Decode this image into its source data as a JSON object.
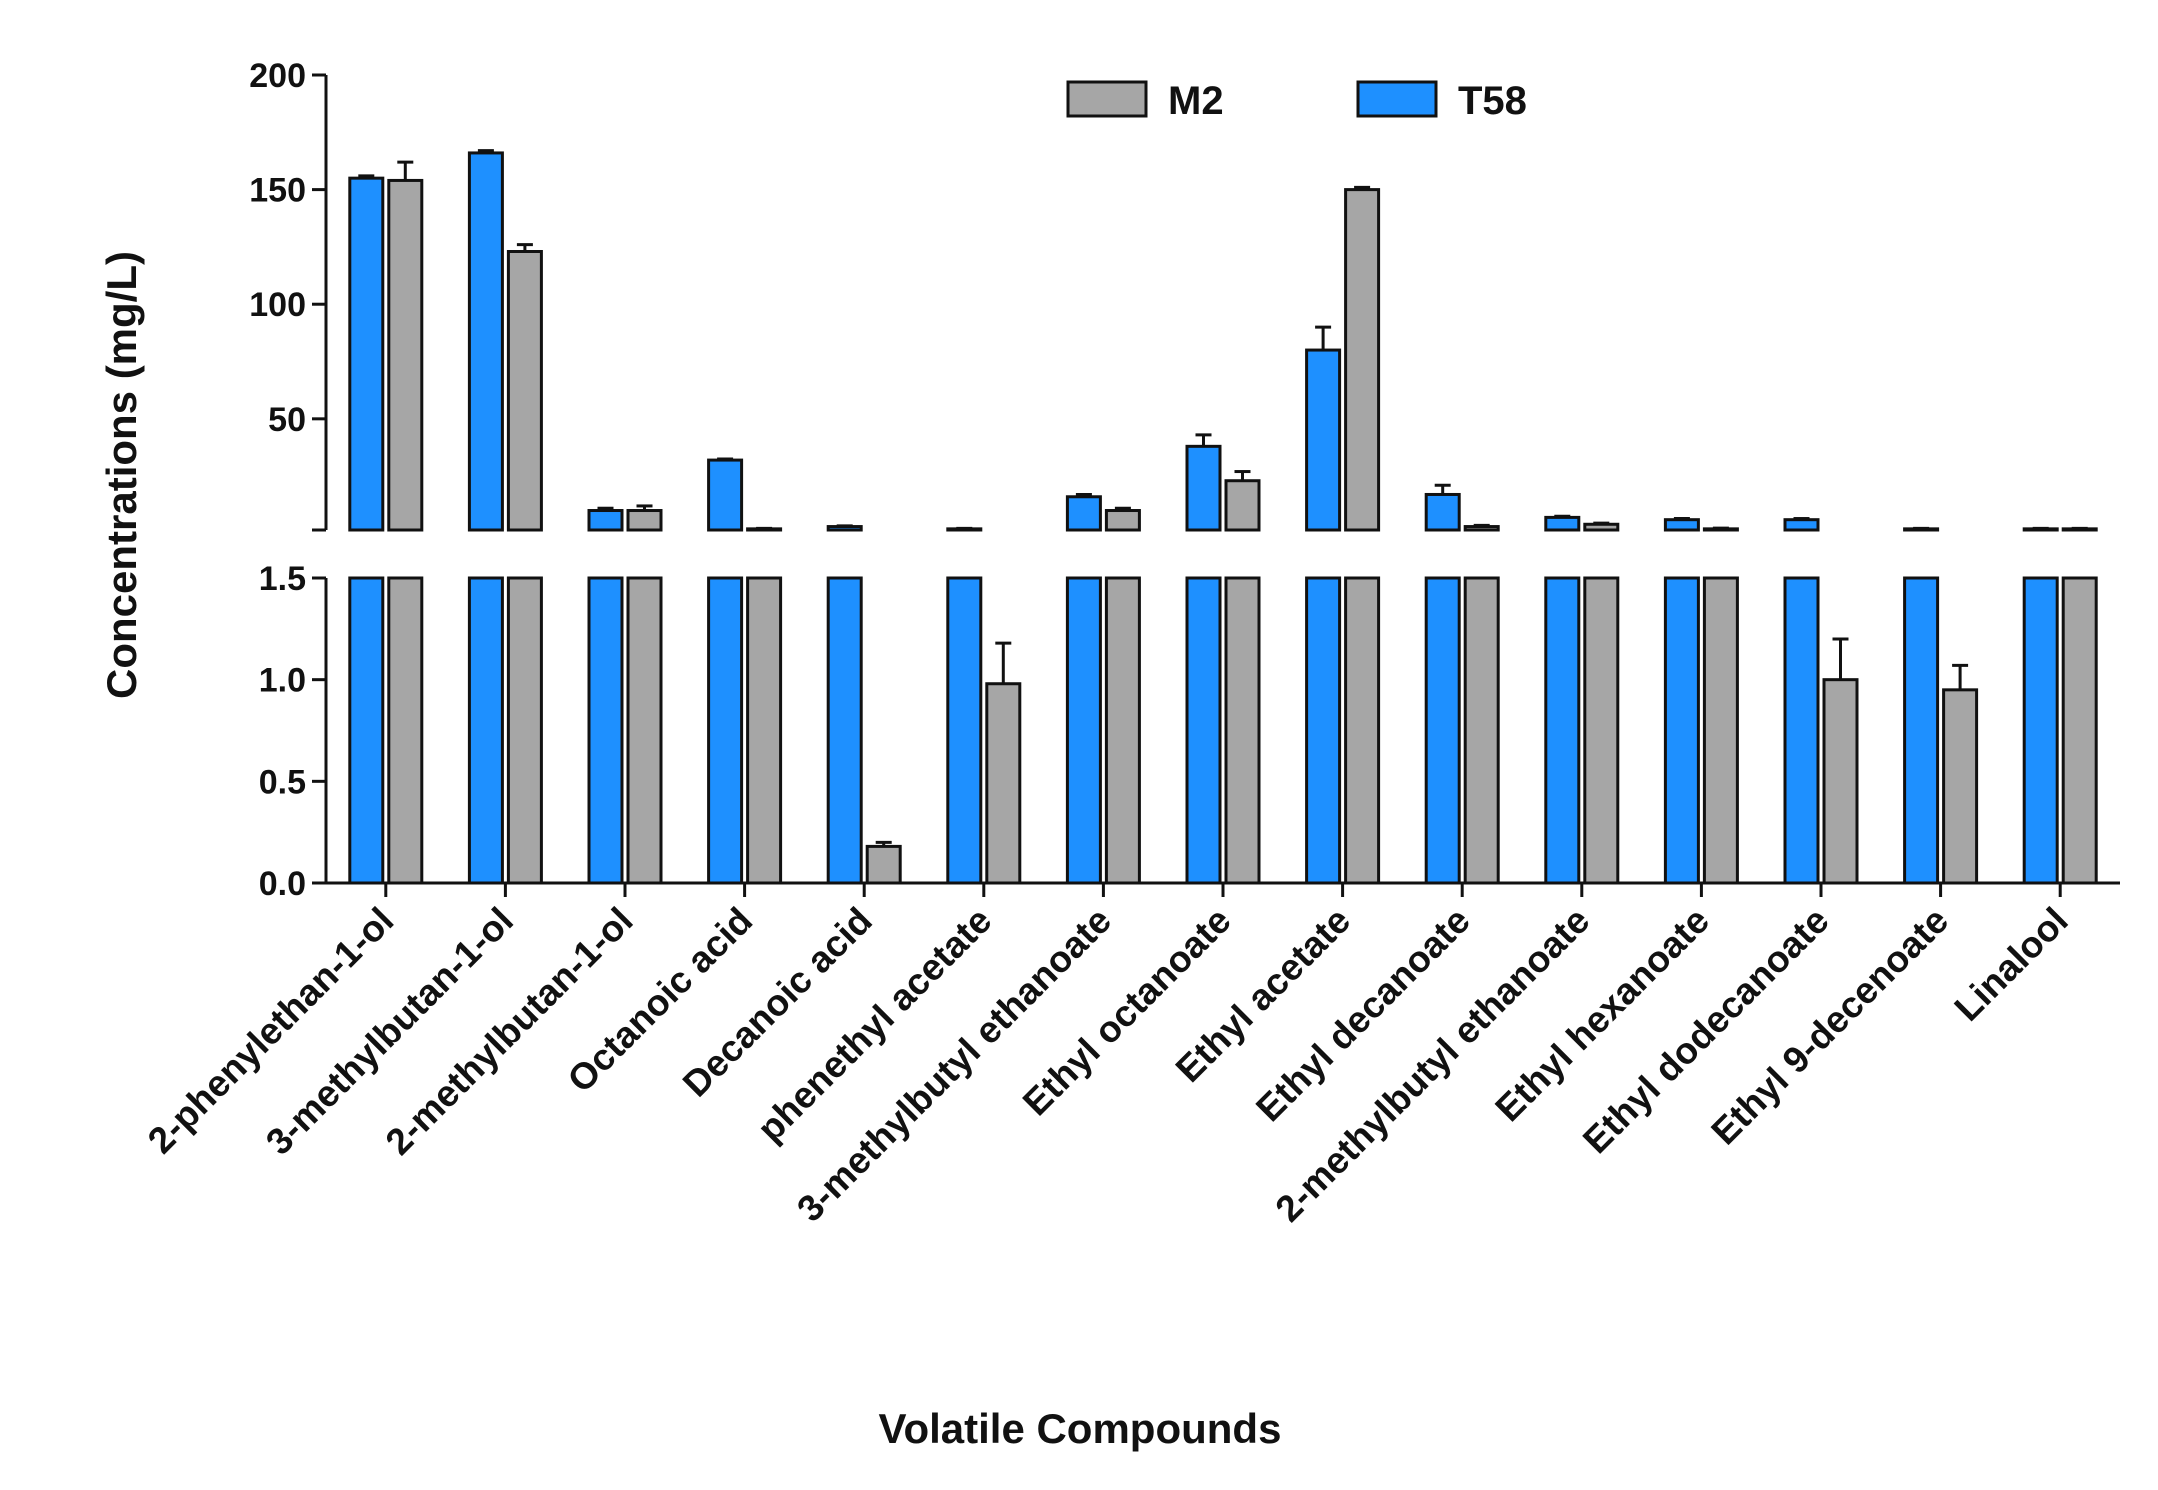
{
  "chart_data": {
    "type": "bar",
    "title": "",
    "xlabel": "Volatile Compounds",
    "ylabel": "Concentrations (mg/L)",
    "axis_break": true,
    "upper_segment": {
      "ylim": [
        1.5,
        200
      ],
      "ticks": [
        50,
        100,
        150,
        200
      ]
    },
    "lower_segment": {
      "ylim": [
        0,
        1.5
      ],
      "ticks": [
        "0.0",
        "0.5",
        "1.0",
        "1.5"
      ]
    },
    "legend_position": "top-right",
    "categories": [
      "2-phenylethan-1-ol",
      "3-methylbutan-1-ol",
      "2-methylbutan-1-ol",
      "Octanoic acid",
      "Decanoic acid",
      "phenethyl acetate",
      "3-methylbutyl ethanoate",
      "Ethyl octanoate",
      "Ethyl acetate",
      "Ethyl decanoate",
      "2-methylbutyl ethanoate",
      "Ethyl hexanoate",
      "Ethyl dodecanoate",
      "Ethyl 9-decenoate",
      "Linalool"
    ],
    "series": [
      {
        "name": "T58",
        "color": "#1e90ff",
        "values": [
          155,
          166,
          10,
          32,
          3,
          2,
          16,
          38,
          80,
          17,
          7,
          6,
          6,
          2,
          2
        ],
        "errors": [
          1,
          1,
          1,
          0.5,
          0.3,
          0.2,
          1,
          5,
          10,
          4,
          0.5,
          0.5,
          0.5,
          0.2,
          0.2
        ]
      },
      {
        "name": "M2",
        "color": "#a6a6a6",
        "values": [
          154,
          123,
          10,
          2,
          0.18,
          0.98,
          10,
          23,
          150,
          3,
          4,
          2,
          1,
          0.95,
          2
        ],
        "errors": [
          8,
          3,
          2,
          0.2,
          0.02,
          0.2,
          1,
          4,
          1,
          0.5,
          0.5,
          0.3,
          0.2,
          0.12,
          0.2
        ]
      }
    ]
  }
}
